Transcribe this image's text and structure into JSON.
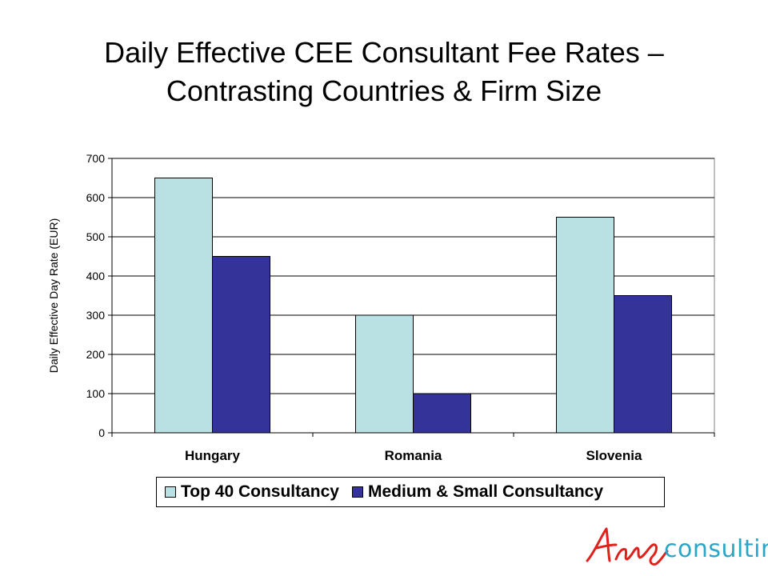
{
  "slide": {
    "title_line1": "Daily Effective CEE Consultant Fee Rates –",
    "title_line2": "Contrasting Countries & Firm Size"
  },
  "chart_data": {
    "type": "bar",
    "categories": [
      "Hungary",
      "Romania",
      "Slovenia"
    ],
    "series": [
      {
        "name": "Top 40 Consultancy",
        "values": [
          650,
          300,
          550
        ],
        "color": "#b9e0e3"
      },
      {
        "name": "Medium & Small Consultancy",
        "values": [
          450,
          100,
          350
        ],
        "color": "#333399"
      }
    ],
    "ylabel": "Daily Effective Day Rate (EUR)",
    "xlabel": "",
    "ylim": [
      0,
      700
    ],
    "yticks": [
      0,
      100,
      200,
      300,
      400,
      500,
      600,
      700
    ],
    "grid": true,
    "legend_position": "bottom"
  },
  "logo": {
    "signature_text": "Ana",
    "wordmark": "consulting",
    "signature_color": "#e0201b",
    "wordmark_color": "#2aa6c7"
  }
}
